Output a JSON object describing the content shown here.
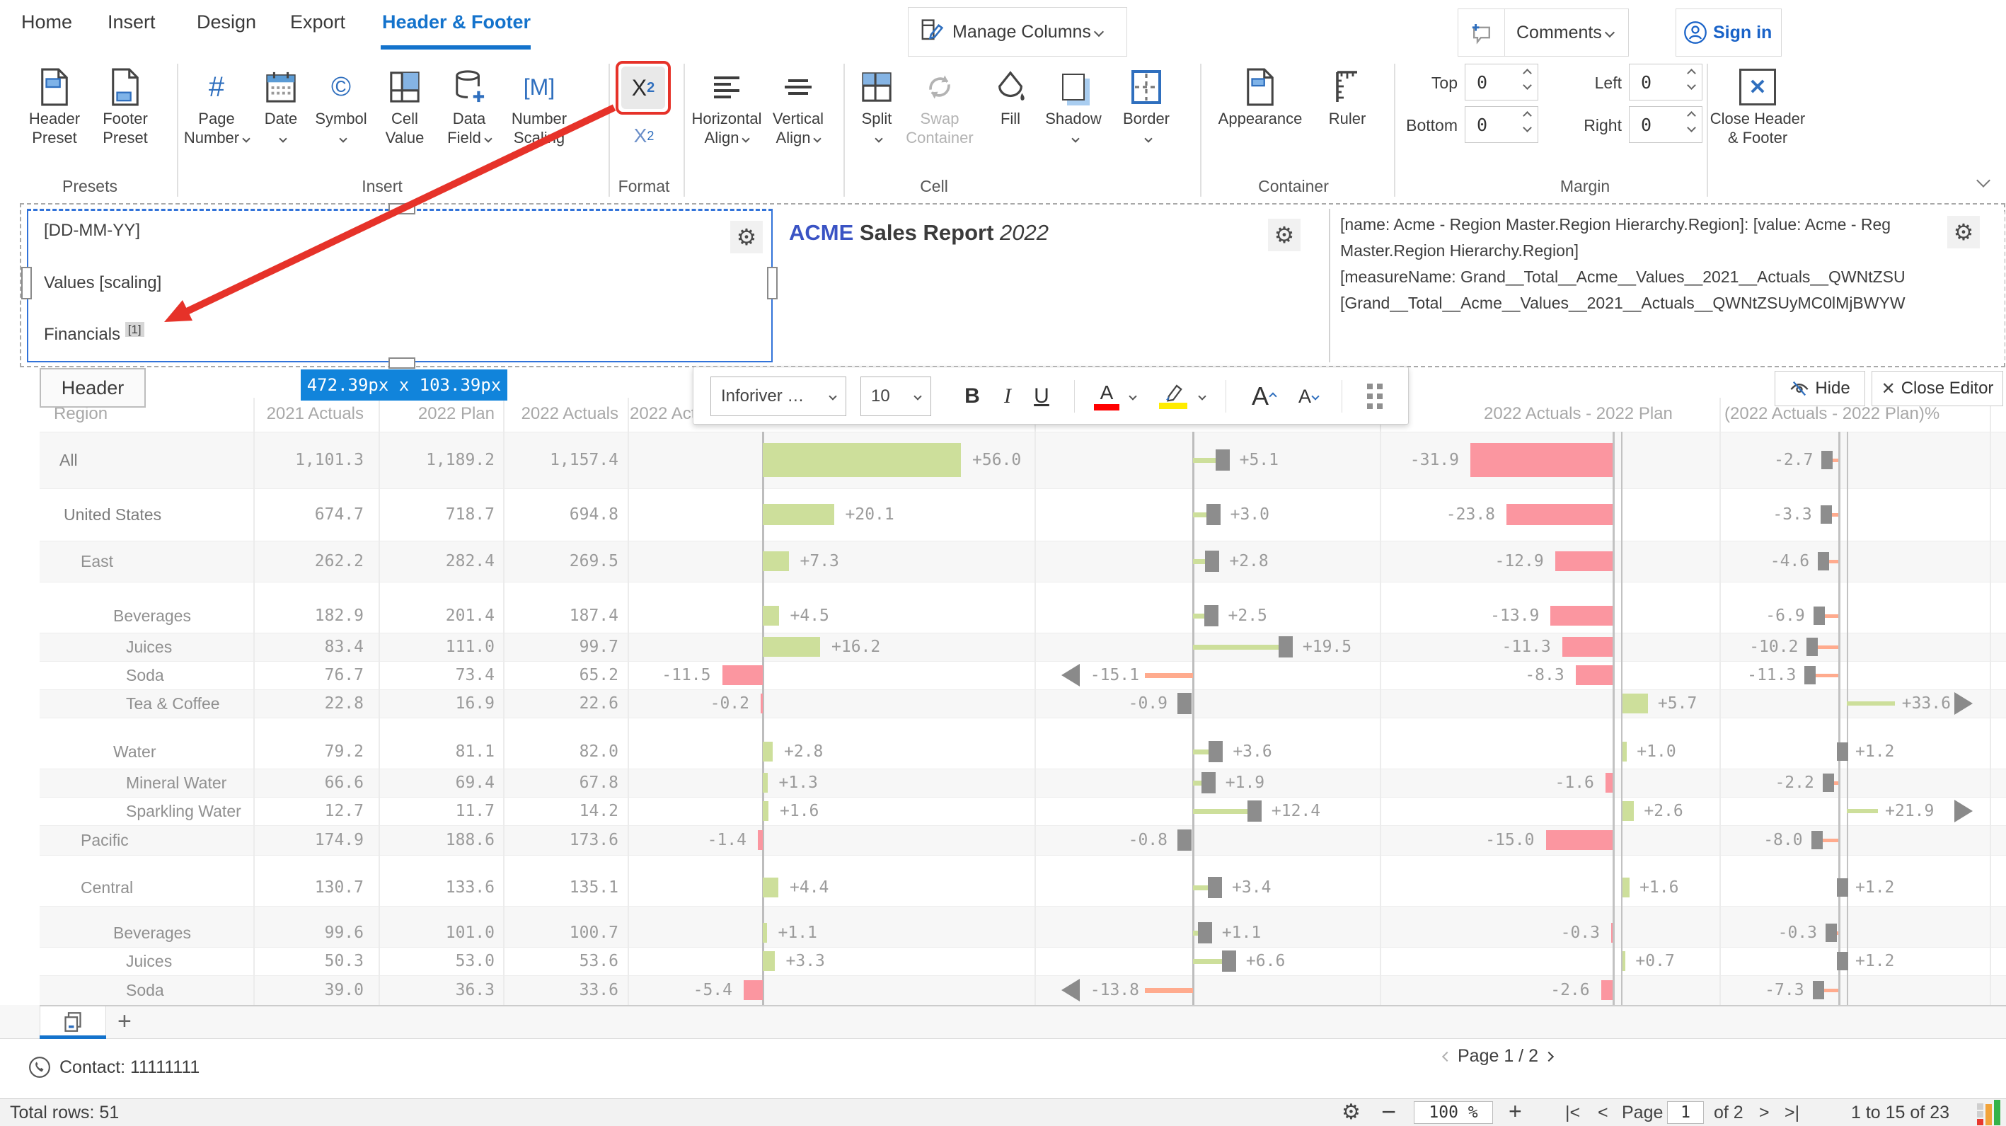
{
  "tabs": {
    "home": "Home",
    "insert": "Insert",
    "design": "Design",
    "export": "Export",
    "header_footer": "Header & Footer"
  },
  "topbar": {
    "manage_columns": "Manage Columns",
    "comments": "Comments",
    "sign_in": "Sign in"
  },
  "ribbon": {
    "presets_label": "Presets",
    "insert_label": "Insert",
    "format_label": "Format",
    "cell_label": "Cell",
    "container_label": "Container",
    "margin_label": "Margin",
    "header_preset1": "Header",
    "header_preset2": "Preset",
    "footer_preset1": "Footer",
    "footer_preset2": "Preset",
    "page_number1": "Page",
    "page_number2": "Number",
    "date": "Date",
    "symbol": "Symbol",
    "cell_value1": "Cell",
    "cell_value2": "Value",
    "data_field1": "Data",
    "data_field2": "Field",
    "number_scaling1": "Number",
    "number_scaling2": "Scaling",
    "superscript_base": "X",
    "superscript_sup": "2",
    "subscript_base": "X",
    "subscript_sub": "2",
    "horizontal1": "Horizontal",
    "horizontal2": "Align",
    "vertical1": "Vertical",
    "vertical2": "Align",
    "split": "Split",
    "swap1": "Swap",
    "swap2": "Container",
    "fill": "Fill",
    "shadow": "Shadow",
    "border": "Border",
    "appearance": "Appearance",
    "ruler": "Ruler",
    "margin_top": "Top",
    "margin_bottom": "Bottom",
    "margin_left": "Left",
    "margin_right": "Right",
    "margin_top_value": "0",
    "margin_bottom_value": "0",
    "margin_left_value": "0",
    "margin_right_value": "0",
    "close1": "Close Header",
    "close2": "& Footer"
  },
  "header_editor": {
    "left_line1": "[DD-MM-YY]",
    "left_line2": "Values [scaling]",
    "left_line3": "Financials",
    "left_sup": "[1]",
    "center_brand": "ACME",
    "center_title": "Sales Report",
    "center_year": "2022",
    "right_lines": [
      "[name: Acme - Region Master.Region Hierarchy.Region]: [value: Acme - Reg",
      "Master.Region Hierarchy.Region]",
      "[measureName: Grand__Total__Acme__Values__2021__Actuals__QWNtZSU",
      "[Grand__Total__Acme__Values__2021__Actuals__QWNtZSUyMC0lMjBWYW"
    ]
  },
  "overlay": {
    "size_tooltip": "472.39px x 103.39px",
    "header_badge": "Header",
    "hide": "Hide",
    "close_editor": "Close Editor"
  },
  "format_toolbar": {
    "font_name": "Inforiver …",
    "font_size": "10",
    "bold": "B",
    "italic": "I",
    "underline": "U",
    "font_color": "A",
    "grow": "A",
    "shrink": "A"
  },
  "colors": {
    "positive": "#cddf9b",
    "negative": "#fb96a0",
    "marker": "#8d8d8d",
    "reference_line": "#ffab8e",
    "accent": "#1473cc",
    "selection": "#3273d9",
    "tooltip": "#1184db",
    "highlight_red": "#e63229"
  },
  "table": {
    "headers": {
      "region": "Region",
      "a2021": "2021 Actuals",
      "p2022": "2022 Plan",
      "a2022": "2022 Actuals",
      "var1": "2022 Act",
      "var3": "2022 Actuals - 2022 Plan",
      "var4": "(2022 Actuals - 2022 Plan)%"
    },
    "rows": [
      {
        "label": "All",
        "level": 0,
        "a2021": "1,101.3",
        "p2022": "1,189.2",
        "a2022": "1,157.4",
        "d1": 56.0,
        "d1_label": "+56.0",
        "d2": 5.1,
        "d2_label": "+5.1",
        "d2_style": "pos",
        "d3": -31.9,
        "d3_label": "-31.9",
        "d4": -2.7,
        "d4_label": "-2.7",
        "d4_style": "neg"
      },
      {
        "label": "United States",
        "level": 1,
        "a2021": "674.7",
        "p2022": "718.7",
        "a2022": "694.8",
        "d1": 20.1,
        "d1_label": "+20.1",
        "d2": 3.0,
        "d2_label": "+3.0",
        "d2_style": "pos",
        "d3": -23.8,
        "d3_label": "-23.8",
        "d4": -3.3,
        "d4_label": "-3.3",
        "d4_style": "neg"
      },
      {
        "label": "East",
        "level": 2,
        "a2021": "262.2",
        "p2022": "282.4",
        "a2022": "269.5",
        "d1": 7.3,
        "d1_label": "+7.3",
        "d2": 2.8,
        "d2_label": "+2.8",
        "d2_style": "pos",
        "d3": -12.9,
        "d3_label": "-12.9",
        "d4": -4.6,
        "d4_label": "-4.6",
        "d4_style": "neg"
      },
      {
        "label": "Beverages",
        "level": 3,
        "a2021": "182.9",
        "p2022": "201.4",
        "a2022": "187.4",
        "d1": 4.5,
        "d1_label": "+4.5",
        "d2": 2.5,
        "d2_label": "+2.5",
        "d2_style": "pos",
        "d3": -13.9,
        "d3_label": "-13.9",
        "d4": -6.9,
        "d4_label": "-6.9",
        "d4_style": "neg"
      },
      {
        "label": "Juices",
        "level": 4,
        "a2021": "83.4",
        "p2022": "111.0",
        "a2022": "99.7",
        "d1": 16.2,
        "d1_label": "+16.2",
        "d2": 19.5,
        "d2_label": "+19.5",
        "d2_style": "pos",
        "d3": -11.3,
        "d3_label": "-11.3",
        "d4": -10.2,
        "d4_label": "-10.2",
        "d4_style": "neg"
      },
      {
        "label": "Soda",
        "level": 4,
        "a2021": "76.7",
        "p2022": "73.4",
        "a2022": "65.2",
        "d1": -11.5,
        "d1_label": "-11.5",
        "d2": -15.1,
        "d2_label": "-15.1",
        "d2_style": "neg-clip",
        "d3": -8.3,
        "d3_label": "-8.3",
        "d4": -11.3,
        "d4_label": "-11.3",
        "d4_style": "neg"
      },
      {
        "label": "Tea & Coffee",
        "level": 4,
        "a2021": "22.8",
        "p2022": "16.9",
        "a2022": "22.6",
        "d1": -0.2,
        "d1_label": "-0.2",
        "d2": -0.9,
        "d2_label": "-0.9",
        "d2_style": "neg-small",
        "d3": 5.7,
        "d3_label": "+5.7",
        "d4": 33.6,
        "d4_label": "+33.6",
        "d4_style": "pos-clip"
      },
      {
        "label": "Water",
        "level": 3,
        "a2021": "79.2",
        "p2022": "81.1",
        "a2022": "82.0",
        "d1": 2.8,
        "d1_label": "+2.8",
        "d2": 3.6,
        "d2_label": "+3.6",
        "d2_style": "pos",
        "d3": 1.0,
        "d3_label": "+1.0",
        "d4": 1.2,
        "d4_label": "+1.2",
        "d4_style": "pos-small"
      },
      {
        "label": "Mineral Water",
        "level": 4,
        "a2021": "66.6",
        "p2022": "69.4",
        "a2022": "67.8",
        "d1": 1.3,
        "d1_label": "+1.3",
        "d2": 1.9,
        "d2_label": "+1.9",
        "d2_style": "pos",
        "d3": -1.6,
        "d3_label": "-1.6",
        "d4": -2.2,
        "d4_label": "-2.2",
        "d4_style": "neg"
      },
      {
        "label": "Sparkling Water",
        "level": 4,
        "a2021": "12.7",
        "p2022": "11.7",
        "a2022": "14.2",
        "d1": 1.6,
        "d1_label": "+1.6",
        "d2": 12.4,
        "d2_label": "+12.4",
        "d2_style": "pos",
        "d3": 2.6,
        "d3_label": "+2.6",
        "d4": 21.9,
        "d4_label": "+21.9",
        "d4_style": "pos-clip"
      },
      {
        "label": "Pacific",
        "level": 2,
        "a2021": "174.9",
        "p2022": "188.6",
        "a2022": "173.6",
        "d1": -1.4,
        "d1_label": "-1.4",
        "d2": -0.8,
        "d2_label": "-0.8",
        "d2_style": "neg-small",
        "d3": -15.0,
        "d3_label": "-15.0",
        "d4": -8.0,
        "d4_label": "-8.0",
        "d4_style": "neg"
      },
      {
        "label": "Central",
        "level": 2,
        "a2021": "130.7",
        "p2022": "133.6",
        "a2022": "135.1",
        "d1": 4.4,
        "d1_label": "+4.4",
        "d2": 3.4,
        "d2_label": "+3.4",
        "d2_style": "pos",
        "d3": 1.6,
        "d3_label": "+1.6",
        "d4": 1.2,
        "d4_label": "+1.2",
        "d4_style": "pos-small"
      },
      {
        "label": "Beverages",
        "level": 3,
        "a2021": "99.6",
        "p2022": "101.0",
        "a2022": "100.7",
        "d1": 1.1,
        "d1_label": "+1.1",
        "d2": 1.1,
        "d2_label": "+1.1",
        "d2_style": "pos",
        "d3": -0.3,
        "d3_label": "-0.3",
        "d4": -0.3,
        "d4_label": "-0.3",
        "d4_style": "neg"
      },
      {
        "label": "Juices",
        "level": 4,
        "a2021": "50.3",
        "p2022": "53.0",
        "a2022": "53.6",
        "d1": 3.3,
        "d1_label": "+3.3",
        "d2": 6.6,
        "d2_label": "+6.6",
        "d2_style": "pos",
        "d3": 0.7,
        "d3_label": "+0.7",
        "d4": 1.2,
        "d4_label": "+1.2",
        "d4_style": "pos-small"
      },
      {
        "label": "Soda",
        "level": 4,
        "a2021": "39.0",
        "p2022": "36.3",
        "a2022": "33.6",
        "d1": -5.4,
        "d1_label": "-5.4",
        "d2": -13.8,
        "d2_label": "-13.8",
        "d2_style": "neg-clip",
        "d3": -2.6,
        "d3_label": "-2.6",
        "d4": -7.3,
        "d4_label": "-7.3",
        "d4_style": "neg"
      }
    ]
  },
  "footer": {
    "contact": "Contact: 11111111",
    "page_indicator": "Page 1 / 2"
  },
  "status": {
    "total_rows": "Total rows: 51",
    "zoom": "100 %",
    "nav_page": "Page",
    "nav_value": "1",
    "nav_of": "of 2",
    "range": "1 to 15 of 23"
  }
}
